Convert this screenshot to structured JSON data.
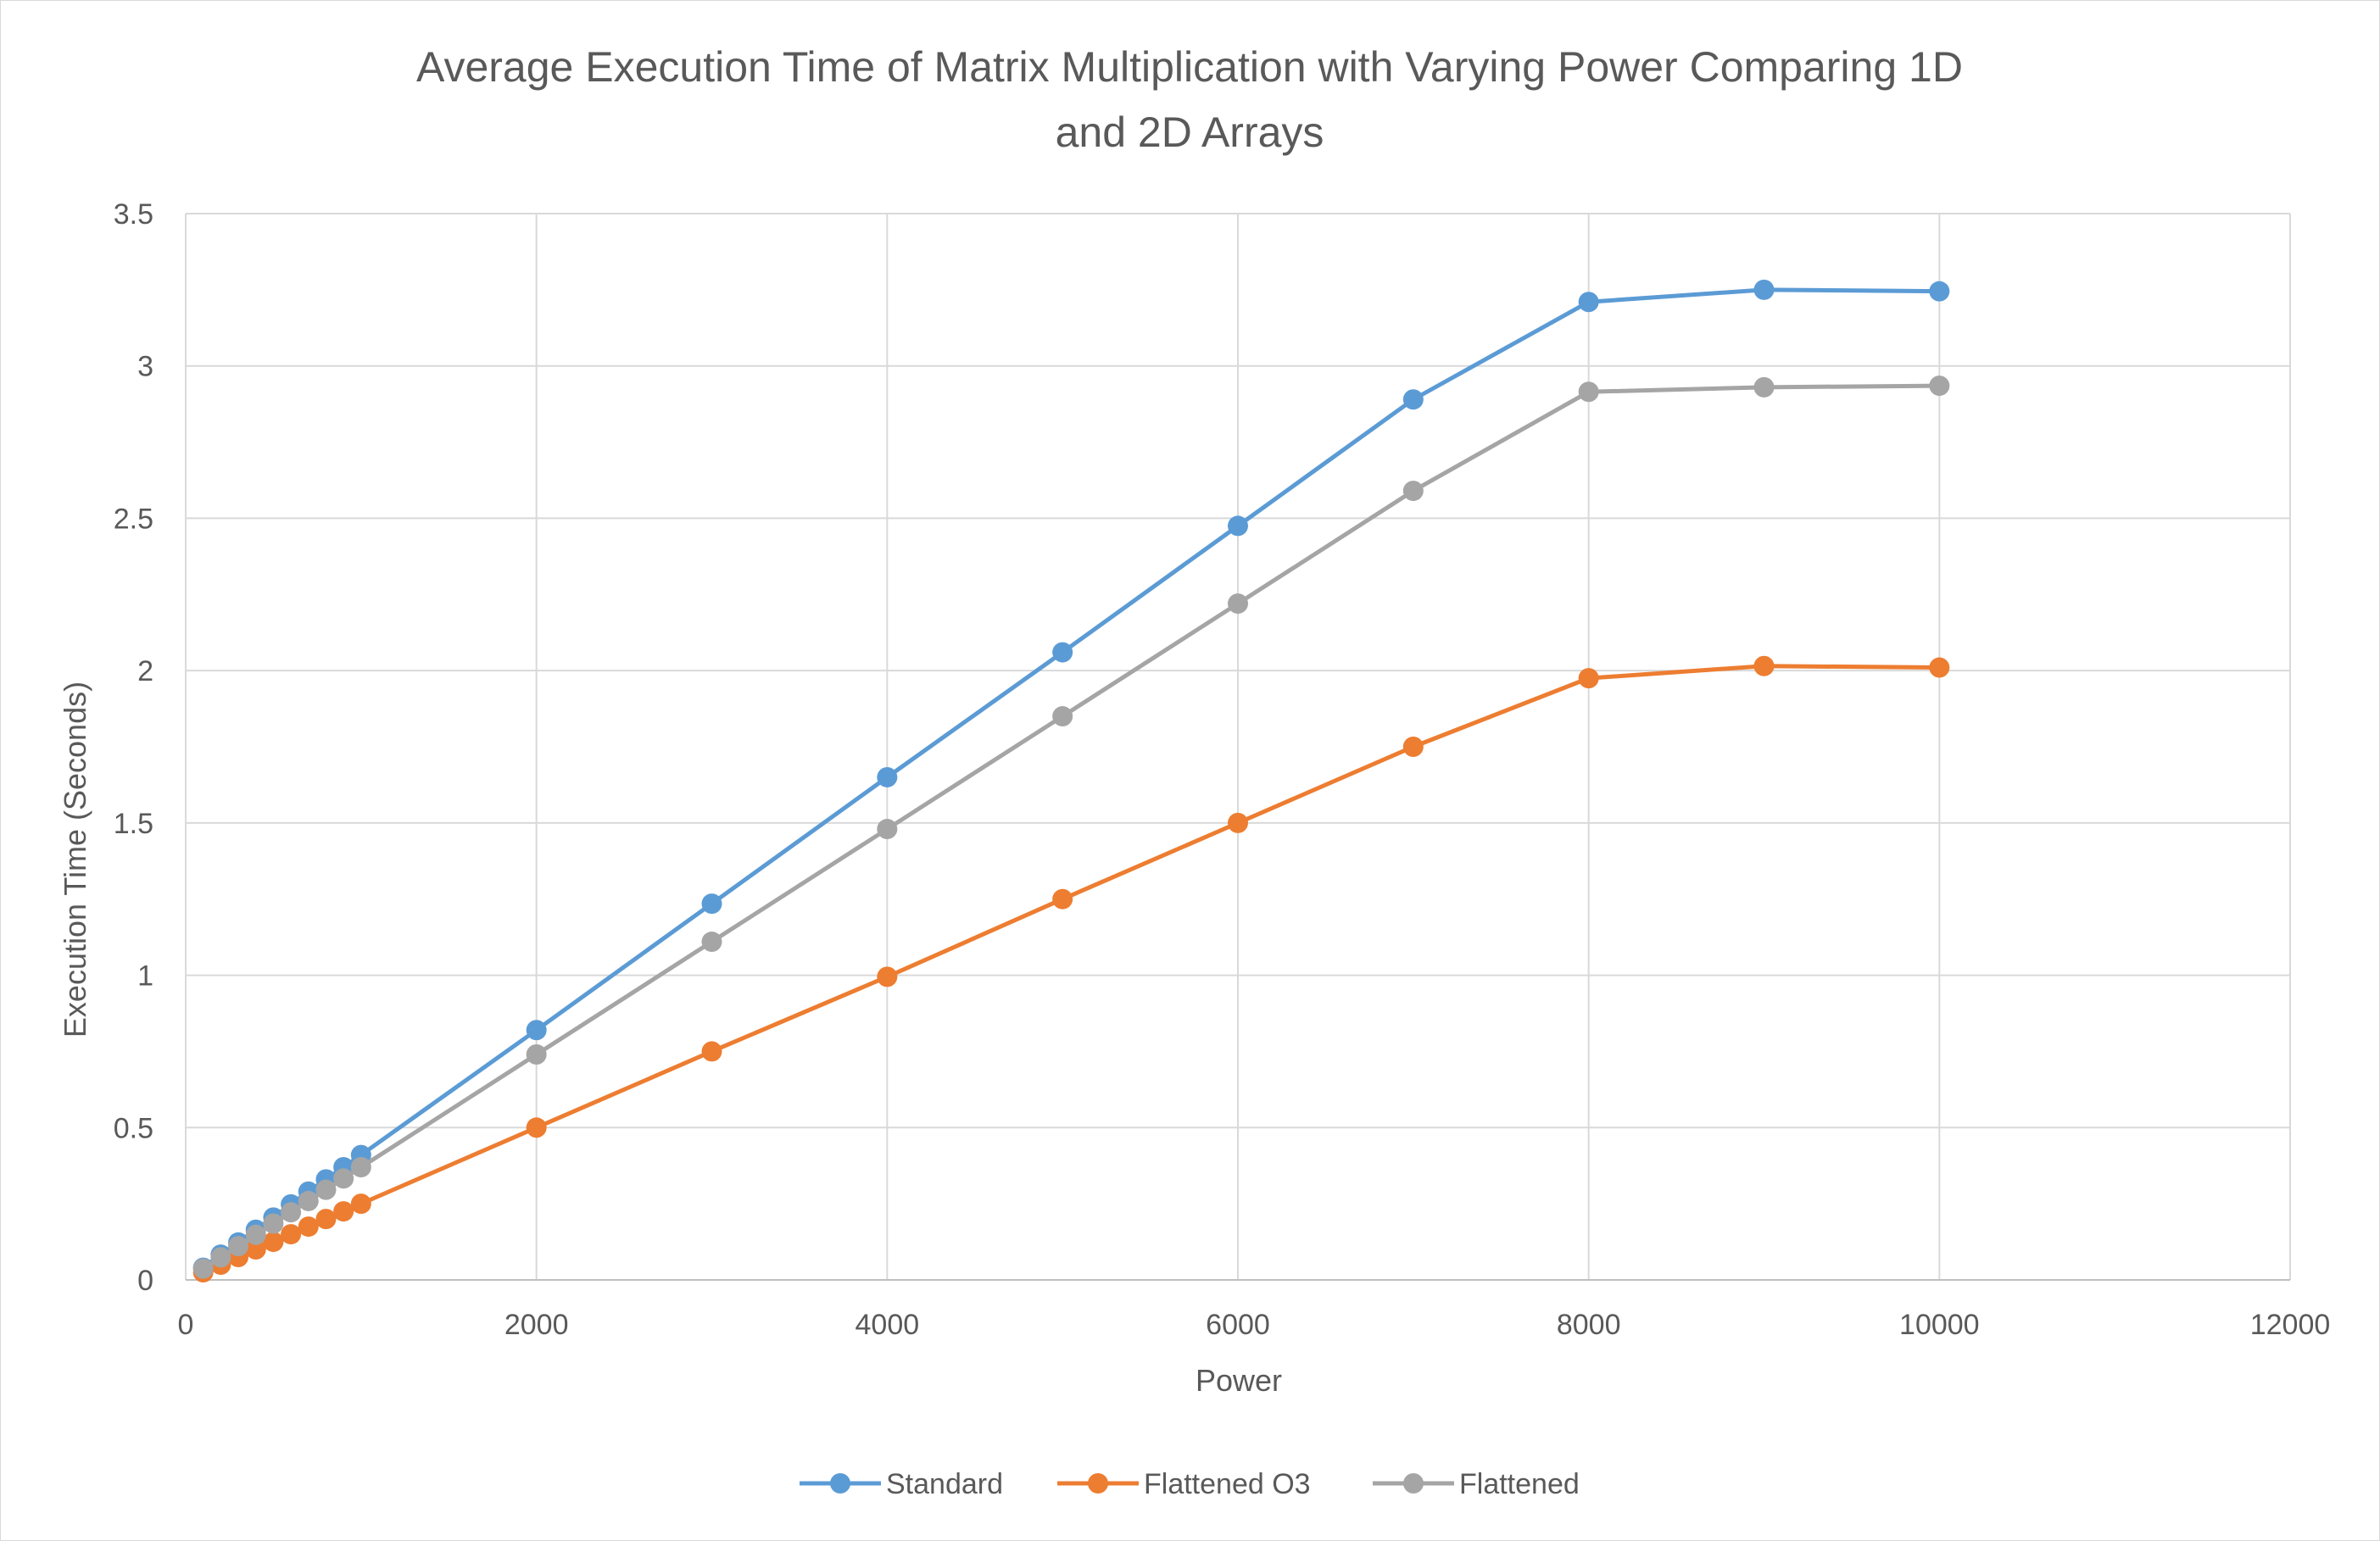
{
  "chart_data": {
    "type": "line",
    "title_lines": [
      "Average Execution Time of Matrix Multiplication with Varying Power Comparing 1D",
      "and 2D Arrays"
    ],
    "xlabel": "Power",
    "ylabel": "Execution Time (Seconds)",
    "xlim": [
      0,
      12000
    ],
    "ylim": [
      0,
      3.5
    ],
    "x_ticks": [
      0,
      2000,
      4000,
      6000,
      8000,
      10000,
      12000
    ],
    "x_tick_labels": [
      "0",
      "2000",
      "4000",
      "6000",
      "8000",
      "10000",
      "12000"
    ],
    "y_ticks": [
      0,
      0.5,
      1,
      1.5,
      2,
      2.5,
      3,
      3.5
    ],
    "y_tick_labels": [
      "0",
      "0.5",
      "1",
      "1.5",
      "2",
      "2.5",
      "3",
      "3.5"
    ],
    "grid": true,
    "legend_position": "bottom",
    "x": [
      100,
      200,
      300,
      400,
      500,
      600,
      700,
      800,
      900,
      1000,
      2000,
      3000,
      4000,
      5000,
      6000,
      7000,
      8000,
      9000,
      10000
    ],
    "series": [
      {
        "name": "Standard",
        "color": "#5B9BD5",
        "values": [
          0.04,
          0.083,
          0.123,
          0.165,
          0.205,
          0.248,
          0.29,
          0.33,
          0.37,
          0.41,
          0.82,
          1.235,
          1.65,
          2.06,
          2.475,
          2.89,
          3.21,
          3.25,
          3.245
        ]
      },
      {
        "name": "Flattened O3",
        "color": "#ED7D31",
        "values": [
          0.025,
          0.05,
          0.075,
          0.1,
          0.125,
          0.15,
          0.175,
          0.2,
          0.225,
          0.25,
          0.5,
          0.75,
          0.995,
          1.25,
          1.5,
          1.75,
          1.975,
          2.015,
          2.01
        ]
      },
      {
        "name": "Flattened",
        "color": "#A5A5A5",
        "values": [
          0.037,
          0.074,
          0.111,
          0.148,
          0.185,
          0.222,
          0.259,
          0.296,
          0.333,
          0.37,
          0.74,
          1.11,
          1.48,
          1.85,
          2.22,
          2.59,
          2.915,
          2.93,
          2.935
        ]
      }
    ]
  }
}
